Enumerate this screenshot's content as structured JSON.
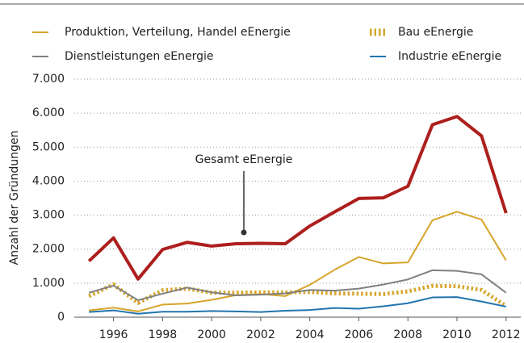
{
  "chart_data": {
    "type": "line",
    "y_label": "Anzahl der Gründungen",
    "x": [
      1995,
      1996,
      1997,
      1998,
      1999,
      2000,
      2001,
      2002,
      2003,
      2004,
      2005,
      2006,
      2007,
      2008,
      2009,
      2010,
      2011,
      2012
    ],
    "series": [
      {
        "name": "Produktion, Verteilung, Handel eEnergie",
        "color": "#d6a52a",
        "style": "solid",
        "values": [
          200,
          280,
          170,
          370,
          400,
          510,
          650,
          680,
          620,
          950,
          1390,
          1770,
          1580,
          1610,
          2850,
          3100,
          2870,
          1670
        ]
      },
      {
        "name": "Bau eEnergie",
        "color": "#d6a52a",
        "style": "dotted",
        "values": [
          620,
          960,
          420,
          790,
          840,
          720,
          720,
          730,
          730,
          740,
          700,
          690,
          680,
          760,
          920,
          910,
          800,
          330
        ]
      },
      {
        "name": "Dienstleistungen eEnergie",
        "color": "#808080",
        "style": "solid",
        "values": [
          720,
          930,
          500,
          690,
          870,
          730,
          640,
          660,
          700,
          800,
          780,
          840,
          960,
          1110,
          1380,
          1360,
          1260,
          720
        ]
      },
      {
        "name": "Industrie eEnergie",
        "color": "#2274ae",
        "style": "solid",
        "values": [
          150,
          200,
          100,
          160,
          160,
          180,
          170,
          150,
          190,
          210,
          270,
          250,
          320,
          410,
          580,
          590,
          460,
          310
        ]
      },
      {
        "name": "Gesamt eEnergie",
        "color": "#ad1f1d",
        "style": "thick",
        "values": [
          1650,
          2330,
          1120,
          1990,
          2200,
          2090,
          2160,
          2170,
          2160,
          2680,
          3090,
          3490,
          3510,
          3850,
          5660,
          5900,
          5330,
          3060
        ]
      }
    ],
    "xlim": [
      1994.4,
      2012.6
    ],
    "xticks": [
      1996,
      1998,
      2000,
      2002,
      2004,
      2006,
      2008,
      2010,
      2012
    ],
    "ylim": [
      0,
      7000
    ],
    "yticks": [
      0,
      {
        "value": 1000,
        "label": "1.000"
      },
      {
        "value": 2000,
        "label": "2.000"
      },
      {
        "value": 3000,
        "label": "3.000"
      },
      {
        "value": 4000,
        "label": "4.000"
      },
      {
        "value": 5000,
        "label": "5.000"
      },
      {
        "value": 6000,
        "label": "6.000"
      },
      {
        "value": 7000,
        "label": "7.000"
      }
    ],
    "grid": true
  }
}
